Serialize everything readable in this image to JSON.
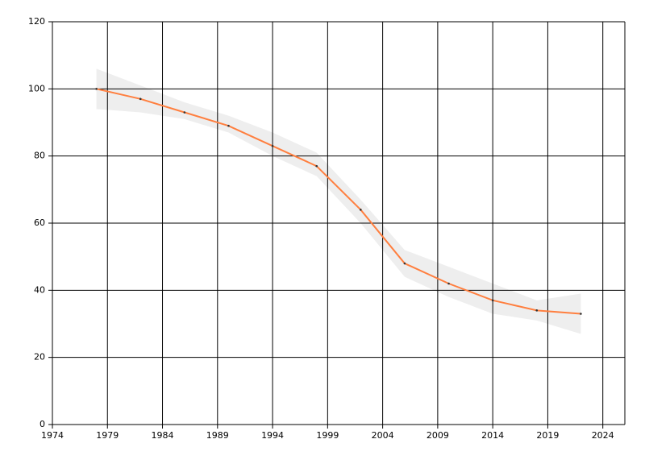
{
  "chart_data": {
    "type": "line",
    "x": [
      1978,
      1982,
      1986,
      1990,
      1994,
      1998,
      2002,
      2006,
      2010,
      2014,
      2018,
      2022
    ],
    "series": [
      {
        "color": "#ff7f3f",
        "values": [
          100,
          97,
          93,
          89,
          83,
          77,
          64,
          48,
          42,
          37,
          34,
          33
        ]
      }
    ],
    "band": {
      "color": "#eeeeee",
      "lower": [
        94,
        93,
        91,
        87,
        80,
        74,
        60,
        44,
        38,
        33,
        31,
        27
      ],
      "upper": [
        106,
        101,
        96,
        92,
        87,
        81,
        67,
        52,
        47,
        42,
        37,
        39
      ]
    },
    "xlim": [
      1974,
      2026
    ],
    "xticks": [
      1974,
      1979,
      1984,
      1989,
      1994,
      1999,
      2004,
      2009,
      2014,
      2019,
      2024
    ],
    "ylim": [
      0,
      120
    ],
    "yticks": [
      0,
      20,
      40,
      60,
      80,
      100,
      120
    ],
    "grid": true
  }
}
